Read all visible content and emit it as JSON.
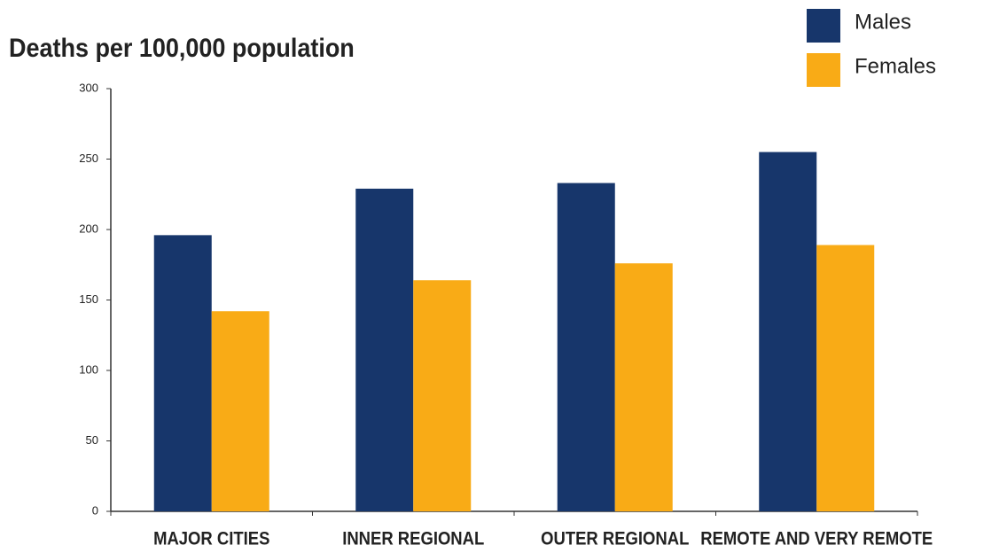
{
  "chart_data": {
    "type": "bar",
    "title": "Deaths per 100,000 population",
    "categories": [
      "MAJOR CITIES",
      "INNER REGIONAL",
      "OUTER REGIONAL",
      "REMOTE AND VERY REMOTE"
    ],
    "series": [
      {
        "name": "Males",
        "color": "#17366b",
        "values": [
          196,
          229,
          233,
          255
        ]
      },
      {
        "name": "Females",
        "color": "#f9ab16",
        "values": [
          142,
          164,
          176,
          189
        ]
      }
    ],
    "ylim": [
      0,
      300
    ],
    "yticks": [
      0,
      50,
      100,
      150,
      200,
      250,
      300
    ],
    "legend": "top-right"
  }
}
